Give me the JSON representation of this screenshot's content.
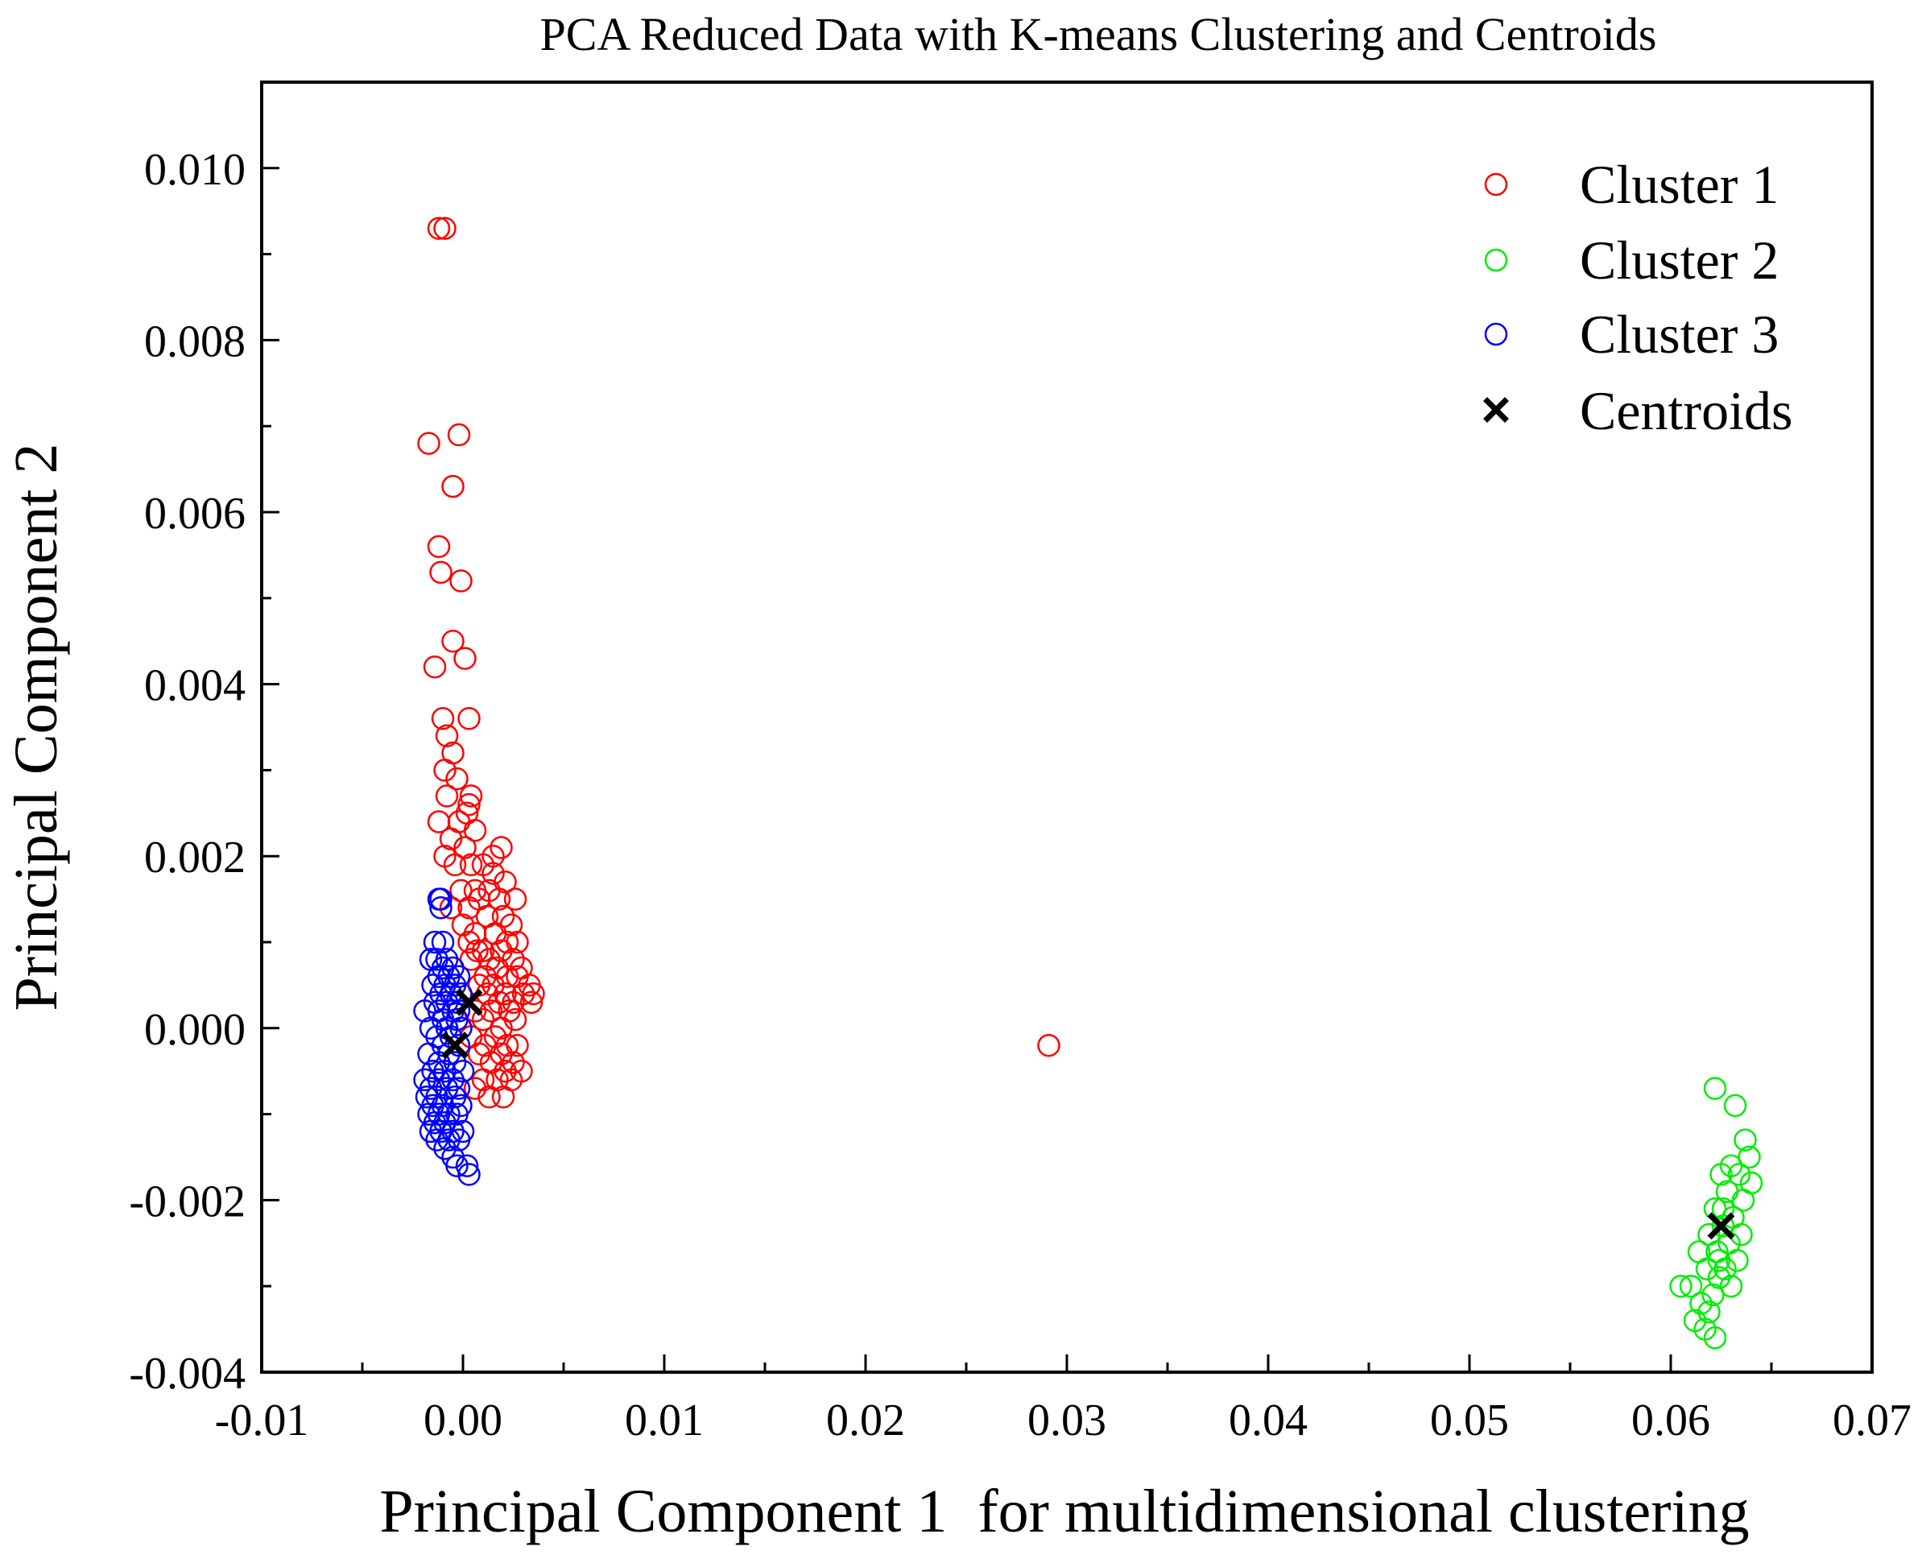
{
  "chart_data": {
    "type": "scatter",
    "title": "PCA Reduced Data with K-means Clustering and Centroids",
    "xlabel": "Principal Component 1  for multidimensional clustering",
    "ylabel": "Principal Component 2",
    "xlim": [
      -0.01,
      0.07
    ],
    "ylim": [
      -0.004,
      0.011
    ],
    "x_ticks": [
      {
        "value": -0.01,
        "label": "-0.01"
      },
      {
        "value": 0.0,
        "label": "0.00"
      },
      {
        "value": 0.01,
        "label": "0.01"
      },
      {
        "value": 0.02,
        "label": "0.02"
      },
      {
        "value": 0.03,
        "label": "0.03"
      },
      {
        "value": 0.04,
        "label": "0.04"
      },
      {
        "value": 0.05,
        "label": "0.05"
      },
      {
        "value": 0.06,
        "label": "0.06"
      },
      {
        "value": 0.07,
        "label": "0.07"
      }
    ],
    "y_ticks": [
      {
        "value": -0.004,
        "label": "-0.004"
      },
      {
        "value": -0.002,
        "label": "-0.002"
      },
      {
        "value": 0.0,
        "label": "0.000"
      },
      {
        "value": 0.002,
        "label": "0.002"
      },
      {
        "value": 0.004,
        "label": "0.004"
      },
      {
        "value": 0.006,
        "label": "0.006"
      },
      {
        "value": 0.008,
        "label": "0.008"
      },
      {
        "value": 0.01,
        "label": "0.010"
      }
    ],
    "grid": false,
    "legend_position": "top-right",
    "series": [
      {
        "name": "Cluster 1",
        "marker": "open-circle",
        "color": "#ff0000",
        "points": [
          [
            -0.0012,
            0.0093
          ],
          [
            -0.0009,
            0.0093
          ],
          [
            -0.0017,
            0.0068
          ],
          [
            -0.0002,
            0.0069
          ],
          [
            -0.0005,
            0.0063
          ],
          [
            -0.0012,
            0.0056
          ],
          [
            -0.0011,
            0.0053
          ],
          [
            -0.0001,
            0.0052
          ],
          [
            -0.0005,
            0.0045
          ],
          [
            -0.0014,
            0.0042
          ],
          [
            0.0001,
            0.0043
          ],
          [
            -0.001,
            0.0036
          ],
          [
            0.0003,
            0.0036
          ],
          [
            -0.0008,
            0.0034
          ],
          [
            -0.0005,
            0.0032
          ],
          [
            -0.0009,
            0.003
          ],
          [
            -0.0003,
            0.0029
          ],
          [
            0.0004,
            0.0027
          ],
          [
            0.0003,
            0.0026
          ],
          [
            -0.0008,
            0.0027
          ],
          [
            -0.0012,
            0.0024
          ],
          [
            -0.0002,
            0.0024
          ],
          [
            0.0002,
            0.0025
          ],
          [
            0.0006,
            0.0023
          ],
          [
            -0.0006,
            0.0022
          ],
          [
            0.0001,
            0.0021
          ],
          [
            0.0015,
            0.002
          ],
          [
            0.0019,
            0.0021
          ],
          [
            -0.0009,
            0.002
          ],
          [
            -0.0004,
            0.0019
          ],
          [
            0.0004,
            0.0019
          ],
          [
            0.001,
            0.0019
          ],
          [
            0.0015,
            0.0018
          ],
          [
            0.0021,
            0.0017
          ],
          [
            -0.0001,
            0.0016
          ],
          [
            0.0006,
            0.0016
          ],
          [
            0.0013,
            0.0016
          ],
          [
            0.0018,
            0.0015
          ],
          [
            0.0026,
            0.0015
          ],
          [
            -0.0006,
            0.0014
          ],
          [
            0.0008,
            0.0015
          ],
          [
            0.0003,
            0.0014
          ],
          [
            0.0012,
            0.0013
          ],
          [
            0.002,
            0.0013
          ],
          [
            0.0024,
            0.0012
          ],
          [
            0.0,
            0.0012
          ],
          [
            0.0006,
            0.0011
          ],
          [
            0.0016,
            0.0011
          ],
          [
            0.0022,
            0.001
          ],
          [
            0.0027,
            0.001
          ],
          [
            0.0003,
            0.001
          ],
          [
            0.001,
            0.0009
          ],
          [
            0.0019,
            0.0009
          ],
          [
            0.0013,
            0.0008
          ],
          [
            0.0007,
            0.0009
          ],
          [
            0.0025,
            0.0008
          ],
          [
            0.0029,
            0.0007
          ],
          [
            0.0004,
            0.0008
          ],
          [
            0.0017,
            0.0007
          ],
          [
            0.0022,
            0.0006
          ],
          [
            0.0011,
            0.0006
          ],
          [
            0.0027,
            0.0006
          ],
          [
            0.0033,
            0.0005
          ],
          [
            0.0015,
            0.0005
          ],
          [
            0.0008,
            0.0005
          ],
          [
            0.0021,
            0.0004
          ],
          [
            0.003,
            0.0004
          ],
          [
            0.0035,
            0.0004
          ],
          [
            0.0012,
            0.0004
          ],
          [
            0.0025,
            0.0003
          ],
          [
            0.0034,
            0.0003
          ],
          [
            0.0018,
            0.0003
          ],
          [
            0.0006,
            0.0002
          ],
          [
            0.0014,
            0.0002
          ],
          [
            0.0023,
            0.0002
          ],
          [
            0.001,
            0.0001
          ],
          [
            0.0019,
            0.0
          ],
          [
            0.0026,
            0.0001
          ],
          [
            0.0004,
            -0.0001
          ],
          [
            0.0016,
            -0.0001
          ],
          [
            0.0022,
            -0.0002
          ],
          [
            0.0011,
            -0.0002
          ],
          [
            0.0027,
            -0.0002
          ],
          [
            0.0019,
            -0.0003
          ],
          [
            0.0008,
            -0.0003
          ],
          [
            0.0025,
            -0.0004
          ],
          [
            0.0014,
            -0.0004
          ],
          [
            0.0021,
            -0.0005
          ],
          [
            0.0029,
            -0.0005
          ],
          [
            0.001,
            -0.0006
          ],
          [
            0.0017,
            -0.0006
          ],
          [
            0.0024,
            -0.0006
          ],
          [
            0.0006,
            -0.0007
          ],
          [
            0.002,
            -0.0008
          ],
          [
            0.0013,
            -0.0008
          ],
          [
            0.0291,
            -0.0002
          ]
        ]
      },
      {
        "name": "Cluster 2",
        "marker": "open-circle",
        "color": "#00ee00",
        "points": [
          [
            0.0622,
            -0.0007
          ],
          [
            0.0632,
            -0.0009
          ],
          [
            0.0637,
            -0.0013
          ],
          [
            0.0639,
            -0.0015
          ],
          [
            0.0625,
            -0.0017
          ],
          [
            0.063,
            -0.0016
          ],
          [
            0.0634,
            -0.0017
          ],
          [
            0.064,
            -0.0018
          ],
          [
            0.0628,
            -0.0019
          ],
          [
            0.0636,
            -0.002
          ],
          [
            0.0622,
            -0.0021
          ],
          [
            0.0631,
            -0.0022
          ],
          [
            0.0626,
            -0.0023
          ],
          [
            0.0635,
            -0.0024
          ],
          [
            0.0619,
            -0.0024
          ],
          [
            0.0629,
            -0.0025
          ],
          [
            0.0623,
            -0.0026
          ],
          [
            0.0633,
            -0.0027
          ],
          [
            0.0614,
            -0.0026
          ],
          [
            0.0627,
            -0.0028
          ],
          [
            0.0618,
            -0.0028
          ],
          [
            0.0624,
            -0.0029
          ],
          [
            0.063,
            -0.003
          ],
          [
            0.061,
            -0.003
          ],
          [
            0.0621,
            -0.0031
          ],
          [
            0.0615,
            -0.0032
          ],
          [
            0.0619,
            -0.0033
          ],
          [
            0.0605,
            -0.003
          ],
          [
            0.0612,
            -0.0034
          ],
          [
            0.0617,
            -0.0035
          ],
          [
            0.0622,
            -0.0036
          ],
          [
            0.0624,
            -0.0027
          ],
          [
            0.0626,
            -0.0021
          ]
        ]
      },
      {
        "name": "Cluster 3",
        "marker": "open-circle",
        "color": "#0000ff",
        "points": [
          [
            -0.0012,
            0.0015
          ],
          [
            -0.0011,
            0.0015
          ],
          [
            -0.0011,
            0.0014
          ],
          [
            -0.0014,
            0.001
          ],
          [
            -0.001,
            0.001
          ],
          [
            -0.0013,
            0.0008
          ],
          [
            -0.0016,
            0.0008
          ],
          [
            -0.0008,
            0.0008
          ],
          [
            -0.0005,
            0.0007
          ],
          [
            -0.001,
            0.0007
          ],
          [
            -0.0002,
            0.0006
          ],
          [
            -0.0012,
            0.0006
          ],
          [
            -0.0007,
            0.0006
          ],
          [
            -0.0004,
            0.0005
          ],
          [
            -0.0015,
            0.0005
          ],
          [
            -0.0009,
            0.0005
          ],
          [
            -0.0001,
            0.0004
          ],
          [
            -0.0011,
            0.0004
          ],
          [
            -0.0006,
            0.0004
          ],
          [
            -0.0003,
            0.0003
          ],
          [
            -0.0014,
            0.0003
          ],
          [
            -0.0008,
            0.0003
          ],
          [
            -0.0002,
            0.0002
          ],
          [
            -0.0019,
            0.0002
          ],
          [
            -0.0012,
            0.0002
          ],
          [
            -0.0005,
            0.0002
          ],
          [
            -0.001,
            0.0001
          ],
          [
            -0.0003,
            0.0001
          ],
          [
            -0.0016,
            0.0
          ],
          [
            -0.0008,
            0.0
          ],
          [
            -0.0001,
            0.0
          ],
          [
            -0.0013,
            -0.0001
          ],
          [
            -0.0006,
            -0.0001
          ],
          [
            -0.001,
            -0.0002
          ],
          [
            -0.0002,
            -0.0002
          ],
          [
            -0.0017,
            -0.0003
          ],
          [
            -0.0007,
            -0.0003
          ],
          [
            -0.0012,
            -0.0004
          ],
          [
            -0.0004,
            -0.0004
          ],
          [
            0.0,
            -0.0005
          ],
          [
            -0.0015,
            -0.0005
          ],
          [
            -0.0009,
            -0.0005
          ],
          [
            -0.0005,
            -0.0006
          ],
          [
            -0.0019,
            -0.0006
          ],
          [
            -0.0012,
            -0.0006
          ],
          [
            -0.0002,
            -0.0007
          ],
          [
            -0.0016,
            -0.0007
          ],
          [
            -0.0008,
            -0.0007
          ],
          [
            -0.0013,
            -0.0008
          ],
          [
            -0.0004,
            -0.0008
          ],
          [
            -0.0018,
            -0.0008
          ],
          [
            -0.001,
            -0.0009
          ],
          [
            -0.0001,
            -0.0009
          ],
          [
            -0.0015,
            -0.0009
          ],
          [
            -0.0007,
            -0.001
          ],
          [
            -0.0012,
            -0.001
          ],
          [
            -0.0003,
            -0.001
          ],
          [
            -0.0017,
            -0.001
          ],
          [
            -0.0009,
            -0.0011
          ],
          [
            -0.0014,
            -0.0011
          ],
          [
            -0.0005,
            -0.0012
          ],
          [
            0.0,
            -0.0012
          ],
          [
            -0.0011,
            -0.0012
          ],
          [
            -0.0016,
            -0.0012
          ],
          [
            -0.0007,
            -0.0013
          ],
          [
            -0.0013,
            -0.0013
          ],
          [
            -0.0002,
            -0.0013
          ],
          [
            -0.0009,
            -0.0014
          ],
          [
            -0.0005,
            -0.0015
          ],
          [
            -0.0003,
            -0.0016
          ],
          [
            0.0002,
            -0.0016
          ],
          [
            0.0003,
            -0.0017
          ]
        ]
      }
    ],
    "centroids": {
      "name": "Centroids",
      "marker": "x",
      "color": "#000000",
      "points": [
        [
          0.0003,
          0.0003
        ],
        [
          -0.0004,
          -0.0002
        ],
        [
          0.0625,
          -0.0023
        ]
      ]
    }
  }
}
